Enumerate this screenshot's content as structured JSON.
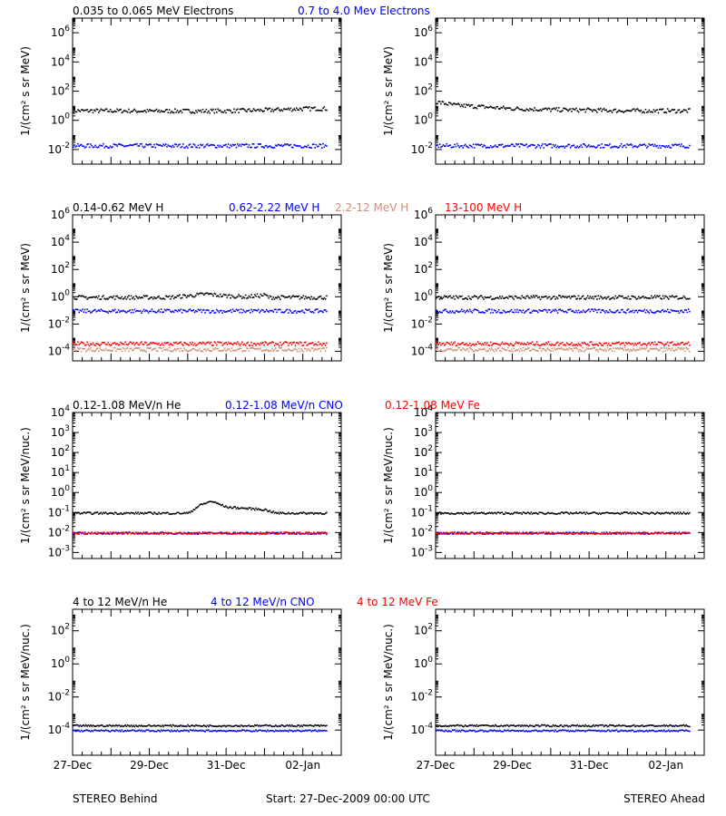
{
  "footer": {
    "left": "STEREO Behind",
    "center": "Start: 27-Dec-2009 00:00 UTC",
    "right": "STEREO Ahead"
  },
  "colors": {
    "black": "#000000",
    "blue": "#0000ff",
    "red": "#ff0000",
    "tan": "#cd8e78"
  },
  "x_ticks": [
    "27-Dec",
    "29-Dec",
    "31-Dec",
    "02-Jan"
  ],
  "chart_data": [
    {
      "type": "scatter",
      "panel": "electrons",
      "ylabel": "1/(cm² s sr MeV)",
      "yscale": "log",
      "ylim": [
        0.001,
        10000000
      ],
      "ytick_exponents": [
        -2,
        0,
        2,
        4,
        6
      ],
      "xlim": [
        "2009-12-27",
        "2010-01-03"
      ],
      "titles": [
        {
          "text": "0.035 to 0.065 MeV Electrons",
          "color": "#000000"
        },
        {
          "text": "0.7 to 4.0 Mev Electrons",
          "color": "#0000ff"
        }
      ],
      "series": [
        {
          "name": "0.035 to 0.065 MeV Electrons",
          "color": "#000000",
          "behind": [
            [
              0,
              5
            ],
            [
              1,
              5
            ],
            [
              2,
              4.8
            ],
            [
              3,
              4.8
            ],
            [
              4,
              4.9
            ],
            [
              5,
              5.5
            ],
            [
              6,
              7
            ]
          ],
          "ahead": [
            [
              0,
              20
            ],
            [
              0.5,
              12
            ],
            [
              1,
              10
            ],
            [
              2,
              7
            ],
            [
              3,
              6
            ],
            [
              4,
              5.5
            ],
            [
              5,
              5
            ],
            [
              6,
              5
            ]
          ]
        },
        {
          "name": "0.7 to 4.0 Mev Electrons",
          "color": "#0000ff",
          "behind": [
            [
              0,
              0.02
            ],
            [
              6,
              0.02
            ]
          ],
          "ahead": [
            [
              0,
              0.02
            ],
            [
              6,
              0.02
            ]
          ]
        }
      ]
    },
    {
      "type": "scatter",
      "panel": "protons",
      "ylabel": "1/(cm² s sr MeV)",
      "yscale": "log",
      "ylim": [
        2e-05,
        1000000
      ],
      "ytick_exponents": [
        -4,
        -2,
        0,
        2,
        4,
        6
      ],
      "xlim": [
        "2009-12-27",
        "2010-01-03"
      ],
      "titles": [
        {
          "text": "0.14-0.62 MeV H",
          "color": "#000000"
        },
        {
          "text": "0.62-2.22 MeV H",
          "color": "#0000ff"
        },
        {
          "text": "2.2-12 MeV H",
          "color": "#cd8e78"
        },
        {
          "text": "13-100 MeV H",
          "color": "#ff0000"
        }
      ],
      "series": [
        {
          "name": "0.14-0.62 MeV H",
          "color": "#000000",
          "behind": [
            [
              0,
              1
            ],
            [
              2.5,
              1
            ],
            [
              3,
              1.3
            ],
            [
              3.5,
              1.8
            ],
            [
              3.8,
              1.4
            ],
            [
              4.5,
              1.1
            ],
            [
              5,
              1.5
            ],
            [
              5.1,
              1
            ],
            [
              6,
              1
            ]
          ],
          "ahead": [
            [
              0,
              1
            ],
            [
              6,
              1
            ]
          ]
        },
        {
          "name": "0.62-2.22 MeV H",
          "color": "#0000ff",
          "behind": [
            [
              0,
              0.1
            ],
            [
              6,
              0.1
            ]
          ],
          "ahead": [
            [
              0,
              0.1
            ],
            [
              6,
              0.1
            ]
          ]
        },
        {
          "name": "2.2-12 MeV H",
          "color": "#cd8e78",
          "behind": [
            [
              0,
              0.00015
            ],
            [
              6,
              0.00015
            ]
          ],
          "ahead": [
            [
              0,
              0.00015
            ],
            [
              6,
              0.00015
            ]
          ]
        },
        {
          "name": "13-100 MeV H",
          "color": "#ff0000",
          "behind": [
            [
              0,
              0.0004
            ],
            [
              6,
              0.0004
            ]
          ],
          "ahead": [
            [
              0,
              0.0004
            ],
            [
              6,
              0.0004
            ]
          ]
        }
      ]
    },
    {
      "type": "scatter",
      "panel": "low-energy-ions",
      "ylabel": "1/(cm² s sr MeV/nuc.)",
      "yscale": "log",
      "ylim": [
        0.0005,
        10000
      ],
      "ytick_exponents": [
        -3,
        -2,
        -1,
        0,
        1,
        2,
        3,
        4
      ],
      "xlim": [
        "2009-12-27",
        "2010-01-03"
      ],
      "titles": [
        {
          "text": "0.12-1.08 MeV/n He",
          "color": "#000000"
        },
        {
          "text": "0.12-1.08 MeV/n CNO",
          "color": "#0000ff"
        },
        {
          "text": "0.12-1.08 MeV Fe",
          "color": "#ff0000"
        }
      ],
      "series": [
        {
          "name": "0.12-1.08 MeV/n He",
          "color": "#000000",
          "behind": [
            [
              0,
              0.1
            ],
            [
              3,
              0.1
            ],
            [
              3.3,
              0.25
            ],
            [
              3.6,
              0.4
            ],
            [
              4,
              0.2
            ],
            [
              5,
              0.15
            ],
            [
              5.3,
              0.1
            ],
            [
              6,
              0.1
            ]
          ],
          "ahead": [
            [
              0,
              0.1
            ],
            [
              6,
              0.1
            ]
          ]
        },
        {
          "name": "0.12-1.08 MeV/n CNO",
          "color": "#0000ff",
          "behind": [
            [
              0,
              0.01
            ],
            [
              6,
              0.01
            ]
          ],
          "ahead": [
            [
              0,
              0.01
            ],
            [
              6,
              0.01
            ]
          ]
        },
        {
          "name": "0.12-1.08 MeV Fe",
          "color": "#ff0000",
          "behind": [
            [
              0,
              0.01
            ],
            [
              6,
              0.01
            ]
          ],
          "ahead": [
            [
              0,
              0.01
            ],
            [
              6,
              0.01
            ]
          ]
        }
      ]
    },
    {
      "type": "scatter",
      "panel": "high-energy-ions",
      "ylabel": "1/(cm² s sr MeV/nuc.)",
      "yscale": "log",
      "ylim": [
        3e-06,
        2000
      ],
      "ytick_exponents": [
        -4,
        -2,
        0,
        2
      ],
      "xlim": [
        "2009-12-27",
        "2010-01-03"
      ],
      "titles": [
        {
          "text": "4 to 12 MeV/n He",
          "color": "#000000"
        },
        {
          "text": "4 to 12 MeV/n CNO",
          "color": "#0000ff"
        },
        {
          "text": "4 to 12 MeV Fe",
          "color": "#ff0000"
        }
      ],
      "series": [
        {
          "name": "4 to 12 MeV/n He",
          "color": "#000000",
          "behind": [
            [
              0,
              0.0002
            ],
            [
              6,
              0.0002
            ]
          ],
          "ahead": [
            [
              0,
              0.0002
            ],
            [
              6,
              0.0002
            ]
          ]
        },
        {
          "name": "4 to 12 MeV/n CNO",
          "color": "#0000ff",
          "behind": [
            [
              0,
              0.0001
            ],
            [
              6,
              0.0001
            ]
          ],
          "ahead": [
            [
              0,
              0.0001
            ],
            [
              6,
              0.0001
            ]
          ]
        },
        {
          "name": "4 to 12 MeV Fe",
          "color": "#ff0000",
          "behind": [],
          "ahead": []
        }
      ]
    }
  ]
}
